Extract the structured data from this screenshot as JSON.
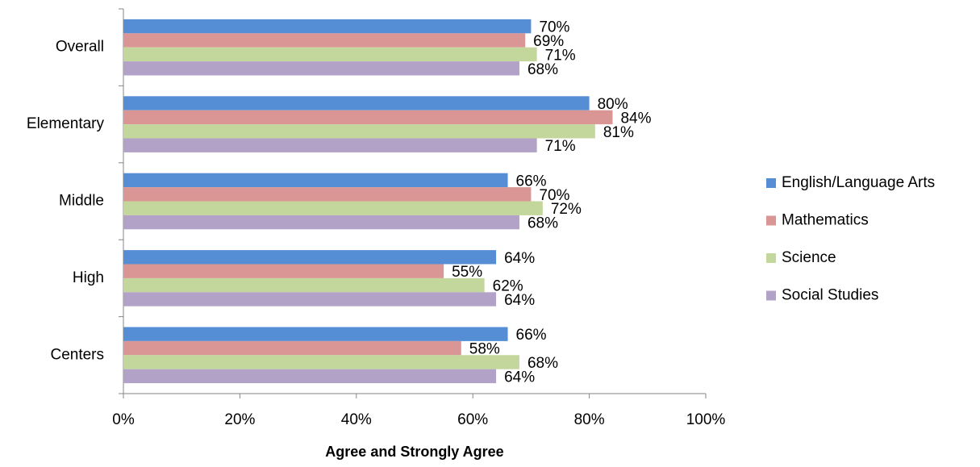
{
  "chart_data": {
    "type": "bar",
    "orientation": "horizontal",
    "x_label": "Agree and Strongly Agree",
    "categories": [
      "Overall",
      "Elementary",
      "Middle",
      "High",
      "Centers"
    ],
    "series": [
      {
        "name": "English/Language Arts",
        "color": "#558ed5",
        "values": [
          70,
          80,
          66,
          64,
          66
        ],
        "value_labels": [
          "70%",
          "80%",
          "66%",
          "64%",
          "66%"
        ]
      },
      {
        "name": "Mathematics",
        "color": "#d99694",
        "values": [
          69,
          84,
          70,
          55,
          58
        ],
        "value_labels": [
          "69%",
          "84%",
          "70%",
          "55%",
          "58%"
        ]
      },
      {
        "name": "Science",
        "color": "#c3d69b",
        "values": [
          71,
          81,
          72,
          62,
          68
        ],
        "value_labels": [
          "71%",
          "81%",
          "72%",
          "62%",
          "68%"
        ]
      },
      {
        "name": "Social Studies",
        "color": "#b3a2c7",
        "values": [
          68,
          71,
          68,
          64,
          64
        ],
        "value_labels": [
          "68%",
          "71%",
          "68%",
          "64%",
          "64%"
        ]
      }
    ],
    "xlim": [
      0,
      100
    ],
    "xticks": [
      {
        "value": 0,
        "label": "0%"
      },
      {
        "value": 20,
        "label": "20%"
      },
      {
        "value": 40,
        "label": "40%"
      },
      {
        "value": 60,
        "label": "60%"
      },
      {
        "value": 80,
        "label": "80%"
      },
      {
        "value": 100,
        "label": "100%"
      }
    ],
    "legend": "right"
  }
}
